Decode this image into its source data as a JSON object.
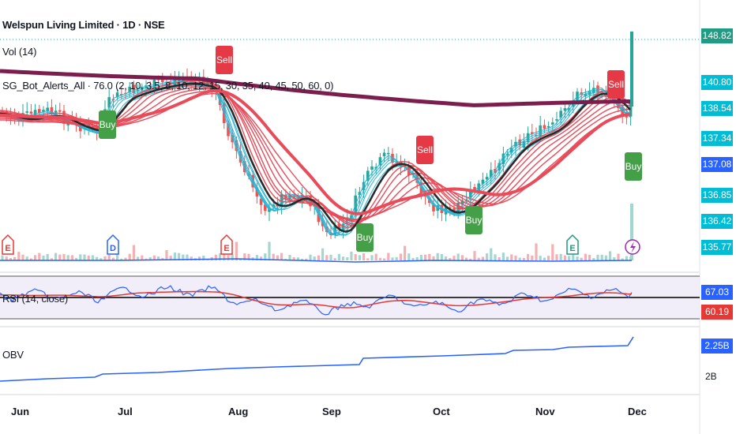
{
  "header": {
    "symbol_title": "Welspun Living Limited · 1D · NSE",
    "vol_label": "Vol (14)",
    "sg_label": "SG_Bot_Alerts_All · 76.0 (2, 10, 3.5, 8, 10, 12, 15, 30, 35, 40, 45, 50, 60, 0)",
    "rsi_label": "RSI (14, close)",
    "obv_label": "OBV"
  },
  "price_axis": {
    "last_price": "148.82",
    "levels": [
      "140.80",
      "138.54",
      "137.34",
      "137.08",
      "136.85",
      "136.42",
      "135.77"
    ]
  },
  "rsi_axis": {
    "rsi_value": "67.03",
    "signal_value": "60.19"
  },
  "obv_axis": {
    "obv_value": "2.25B",
    "tick_2b": "2B"
  },
  "time_axis": [
    "Jun",
    "Jul",
    "Aug",
    "Sep",
    "Oct",
    "Nov",
    "Dec"
  ],
  "signals": {
    "sell": "Sell",
    "buy": "Buy",
    "earnings": "E",
    "dividend": "D"
  },
  "colors": {
    "up": "#26a69a",
    "down": "#ef5350",
    "ma200": "#7b1e4d",
    "ma_black": "#2a2a2a",
    "ribbon_red": "#e84c5a",
    "ribbon_blue": "#29b6d6",
    "rsi": "#2962ff",
    "rsi_signal": "#e53935",
    "last_price_bg": "#1f9c83",
    "axis_cyan": "#00bcd4",
    "axis_blue": "#2962ff"
  }
}
